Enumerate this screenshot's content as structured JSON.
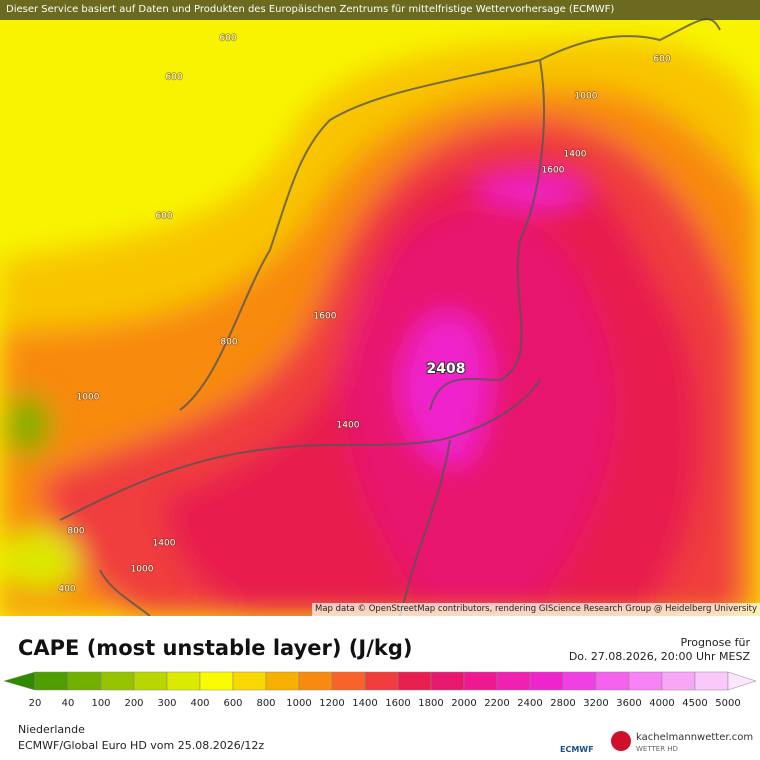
{
  "banner": "Dieser Service basiert auf Daten und Produkten des Europäischen Zentrums für mittelfristige Wettervorhersage (ECMWF)",
  "map": {
    "contour_labels": [
      "600",
      "600",
      "600",
      "1000",
      "1400",
      "1600",
      "600",
      "1600",
      "800",
      "1000",
      "1400",
      "800",
      "1400",
      "1000",
      "400"
    ],
    "max_label": "2408",
    "attribution": "Map data © OpenStreetMap contributors, rendering GIScience Research Group @ Heidelberg University"
  },
  "title": "CAPE (most unstable layer) (J/kg)",
  "forecast": {
    "label": "Prognose für",
    "time": "Do. 27.08.2026, 20:00 Uhr MESZ"
  },
  "scale": {
    "labels": [
      "20",
      "40",
      "100",
      "200",
      "300",
      "400",
      "600",
      "800",
      "1000",
      "1200",
      "1400",
      "1600",
      "1800",
      "2000",
      "2200",
      "2400",
      "2800",
      "3200",
      "3600",
      "4000",
      "4500",
      "5000"
    ],
    "colors": [
      "#2e8b00",
      "#4f9e00",
      "#72b000",
      "#95c300",
      "#b9d600",
      "#dcea00",
      "#fafa00",
      "#f8d800",
      "#f8b000",
      "#f88a10",
      "#f86428",
      "#f03c3c",
      "#e81e4e",
      "#e8186e",
      "#f01890",
      "#f020b0",
      "#f024cc",
      "#f040e4",
      "#f462ee",
      "#f684f4",
      "#f8a6f8",
      "#fbc8fb",
      "#fde6fd"
    ]
  },
  "region": "Niederlande",
  "model": "ECMWF/Global Euro HD vom  25.08.2026/12z",
  "logos": {
    "ecmwf": "ECMWF",
    "brand": "kachelmannwetter.com",
    "brand_sub": "WETTER HD"
  }
}
